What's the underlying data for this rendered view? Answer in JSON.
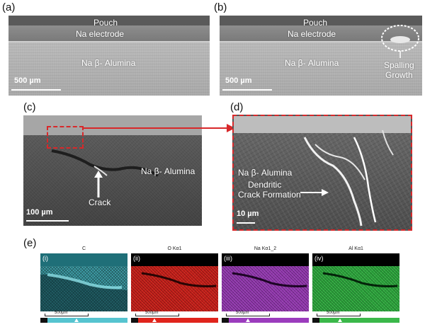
{
  "panels": {
    "a": {
      "letter": "(a)",
      "pouch": "Pouch",
      "electrode": "Na electrode",
      "alumina": "Na β- Alumina",
      "scale": "500 µm"
    },
    "b": {
      "letter": "(b)",
      "pouch": "Pouch",
      "electrode": "Na electrode",
      "alumina": "Na β- Alumina",
      "spalling": "Spalling",
      "growth": "Growth",
      "scale": "500 µm"
    },
    "c": {
      "letter": "(c)",
      "alumina": "Na β- Alumina",
      "crack": "Crack",
      "scale": "100 µm"
    },
    "d": {
      "letter": "(d)",
      "alumina": "Na β- Alumina",
      "dendritic": "Dendritic",
      "crack_formation": "Crack Formation",
      "scale": "10 µm"
    },
    "e": {
      "letter": "(e)",
      "maps": [
        {
          "roman": "(i)",
          "title": "C",
          "scale": "500µm",
          "color": "#5fc9d2",
          "bar": "#56c4d0"
        },
        {
          "roman": "(ii)",
          "title": "O Kα1",
          "scale": "500µm",
          "color": "#d4231c",
          "bar": "#e0241c"
        },
        {
          "roman": "(iii)",
          "title": "Na Kα1_2",
          "scale": "500µm",
          "color": "#9a3fb5",
          "bar": "#9b3cbd"
        },
        {
          "roman": "(iv)",
          "title": "Al Kα1",
          "scale": "500µm",
          "color": "#2fb545",
          "bar": "#3bb84a"
        }
      ]
    }
  },
  "colors": {
    "highlight": "#d8282a",
    "dashed_white": "#ffffff"
  }
}
